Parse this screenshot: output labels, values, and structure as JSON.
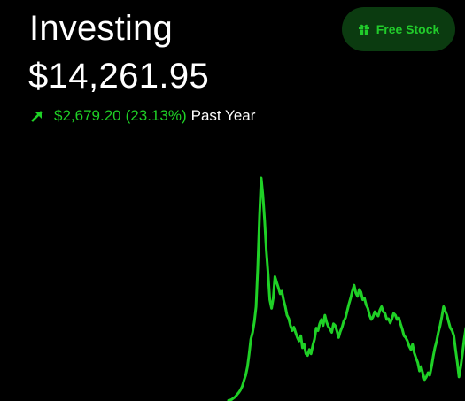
{
  "header": {
    "title": "Investing",
    "balance": "$14,261.95",
    "change_amount": "$2,679.20",
    "change_percent": "(23.13%)",
    "period": "Past Year",
    "trend_icon": "arrow-up-right-icon"
  },
  "free_stock_button": {
    "label": "Free Stock",
    "icon": "gift-icon"
  },
  "colors": {
    "background": "#000000",
    "accent_green": "#1fd126",
    "button_bg": "#0b3b10"
  },
  "chart_data": {
    "type": "line",
    "x": [
      0,
      1,
      2,
      3,
      4,
      5,
      6,
      7,
      8,
      9,
      10,
      11,
      12,
      13,
      14,
      15,
      16,
      17,
      18,
      19,
      20,
      21,
      22,
      23,
      24,
      25,
      26,
      27,
      28,
      29,
      30,
      31,
      32,
      33,
      34,
      35,
      36,
      37,
      38,
      39,
      40,
      41,
      42,
      43,
      44,
      45,
      46,
      47,
      48,
      49,
      50,
      51,
      52,
      53,
      54,
      55,
      56,
      57,
      58,
      59,
      60,
      61,
      62,
      63,
      64,
      65,
      66,
      67,
      68,
      69,
      70,
      71,
      72,
      73,
      74,
      75,
      76,
      77,
      78,
      79,
      80,
      81,
      82,
      83,
      84,
      85,
      86,
      87,
      88,
      89,
      90,
      91,
      92,
      93,
      94,
      95,
      96,
      97,
      98,
      99,
      100,
      101,
      102,
      103,
      104,
      105,
      106,
      107,
      108,
      109,
      110,
      111,
      112,
      113,
      114,
      115,
      116,
      117,
      118,
      119,
      120,
      121,
      122,
      123,
      124,
      125,
      126,
      127,
      128,
      129,
      130,
      131,
      132,
      133,
      134,
      135,
      136,
      137,
      138
    ],
    "series": [
      {
        "color": "#1fd126",
        "values": [
          0.6,
          1.0,
          2.0,
          3.5,
          5.0,
          7.5,
          10.0,
          13.0,
          17.0,
          24.0,
          30.0,
          40.0,
          55.0,
          72.0,
          80.0,
          92.0,
          110.0,
          155.0,
          215.0,
          260.0,
          240.0,
          210.0,
          175.0,
          148.0,
          118.0,
          108.0,
          120.0,
          145.0,
          138.0,
          132.0,
          125.0,
          128.0,
          118.0,
          110.0,
          100.0,
          96.0,
          88.0,
          82.0,
          86.0,
          80.0,
          74.0,
          70.0,
          76.0,
          62.0,
          66.0,
          55.0,
          53.0,
          60.0,
          55.0,
          65.0,
          72.0,
          85.0,
          82.0,
          90.0,
          95.0,
          88.0,
          100.0,
          92.0,
          87.0,
          84.0,
          80.0,
          90.0,
          88.0,
          82.0,
          74.0,
          81.0,
          86.0,
          93.0,
          97.0,
          105.0,
          113.0,
          120.0,
          128.0,
          135.0,
          126.0,
          122.0,
          130.0,
          127.0,
          118.0,
          120.0,
          112.0,
          108.0,
          100.0,
          95.0,
          98.0,
          104.0,
          101.0,
          99.0,
          106.0,
          110.0,
          104.0,
          102.0,
          95.0,
          96.0,
          91.0,
          96.0,
          102.0,
          100.0,
          95.0,
          97.0,
          90.0,
          84.0,
          76.0,
          74.0,
          70.0,
          64.0,
          60.0,
          66.0,
          56.0,
          50.0,
          45.0,
          35.0,
          40.0,
          32.0,
          25.0,
          28.0,
          33.0,
          30.0,
          40.0,
          52.0,
          62.0,
          70.0,
          80.0,
          88.0,
          98.0,
          110.0,
          105.0,
          100.0,
          92.0,
          85.0,
          82.0,
          76.0,
          60.0,
          45.0,
          28.0,
          40.0,
          55.0,
          72.0,
          85.0
        ]
      }
    ],
    "ylim": [
      0,
      260
    ],
    "grid": false
  }
}
